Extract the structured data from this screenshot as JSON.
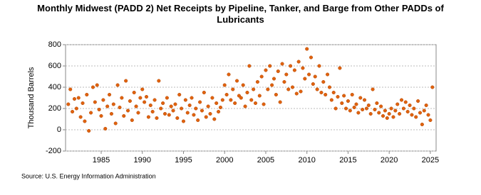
{
  "chart_data": {
    "type": "scatter",
    "title": "Monthly Midwest (PADD 2) Net Receipts by Pipeline, Tanker, and Barge from Other PADDs of Lubricants",
    "y_label": "Thousand Barrels",
    "source": "Source: U.S. Energy Information Administration",
    "color": "#e0620f",
    "grid": true,
    "xlim": [
      1980.67,
      2025.7
    ],
    "ylim": [
      -200,
      800
    ],
    "xticks": [
      1985,
      1990,
      1995,
      2000,
      2005,
      2010,
      2015,
      2020,
      2025
    ],
    "yticks": [
      -200,
      0,
      200,
      400,
      600,
      800
    ],
    "series": [
      {
        "name": "Net Receipts",
        "x": [
          1981,
          1981.25,
          1981.5,
          1981.75,
          1982,
          1982.25,
          1982.5,
          1982.75,
          1983,
          1983.25,
          1983.5,
          1983.75,
          1984,
          1984.25,
          1984.5,
          1984.75,
          1985,
          1985.25,
          1985.5,
          1985.75,
          1986,
          1986.25,
          1986.5,
          1986.75,
          1987,
          1987.25,
          1987.5,
          1987.75,
          1988,
          1988.25,
          1988.5,
          1988.75,
          1989,
          1989.25,
          1989.5,
          1989.75,
          1990,
          1990.25,
          1990.5,
          1990.75,
          1991,
          1991.25,
          1991.5,
          1991.75,
          1992,
          1992.25,
          1992.5,
          1992.75,
          1993,
          1993.25,
          1993.5,
          1993.75,
          1994,
          1994.25,
          1994.5,
          1994.75,
          1995,
          1995.25,
          1995.5,
          1995.75,
          1996,
          1996.25,
          1996.5,
          1996.75,
          1997,
          1997.25,
          1997.5,
          1997.75,
          1998,
          1998.25,
          1998.5,
          1998.75,
          1999,
          1999.25,
          1999.5,
          1999.75,
          2000,
          2000.25,
          2000.5,
          2000.75,
          2001,
          2001.25,
          2001.5,
          2001.75,
          2002,
          2002.25,
          2002.5,
          2002.75,
          2003,
          2003.25,
          2003.5,
          2003.75,
          2004,
          2004.25,
          2004.5,
          2004.75,
          2005,
          2005.25,
          2005.5,
          2005.75,
          2006,
          2006.25,
          2006.5,
          2006.75,
          2007,
          2007.25,
          2007.5,
          2007.75,
          2008,
          2008.25,
          2008.5,
          2008.75,
          2009,
          2009.25,
          2009.5,
          2009.75,
          2010,
          2010.25,
          2010.5,
          2010.75,
          2011,
          2011.25,
          2011.5,
          2011.75,
          2012,
          2012.25,
          2012.5,
          2012.75,
          2013,
          2013.25,
          2013.5,
          2013.75,
          2014,
          2014.25,
          2014.5,
          2014.75,
          2015,
          2015.25,
          2015.5,
          2015.75,
          2016,
          2016.25,
          2016.5,
          2016.75,
          2017,
          2017.25,
          2017.5,
          2017.75,
          2018,
          2018.25,
          2018.5,
          2018.75,
          2019,
          2019.25,
          2019.5,
          2019.75,
          2020,
          2020.25,
          2020.5,
          2020.75,
          2021,
          2021.25,
          2021.5,
          2021.75,
          2022,
          2022.25,
          2022.5,
          2022.75,
          2023,
          2023.25,
          2023.5,
          2023.75,
          2024,
          2024.25,
          2024.5,
          2024.75,
          2025,
          2025.25
        ],
        "values": [
          240,
          380,
          170,
          290,
          200,
          300,
          120,
          250,
          80,
          330,
          -10,
          160,
          400,
          260,
          420,
          190,
          130,
          280,
          10,
          220,
          330,
          150,
          240,
          60,
          420,
          210,
          300,
          130,
          460,
          180,
          270,
          90,
          350,
          220,
          160,
          300,
          380,
          260,
          310,
          120,
          230,
          170,
          280,
          110,
          460,
          200,
          250,
          150,
          300,
          140,
          220,
          180,
          240,
          110,
          330,
          200,
          80,
          280,
          160,
          230,
          300,
          140,
          200,
          90,
          260,
          180,
          350,
          120,
          220,
          150,
          300,
          100,
          250,
          170,
          210,
          280,
          420,
          330,
          520,
          280,
          380,
          250,
          460,
          320,
          300,
          420,
          220,
          350,
          600,
          280,
          380,
          250,
          450,
          320,
          500,
          240,
          560,
          380,
          600,
          420,
          480,
          330,
          550,
          260,
          620,
          450,
          520,
          380,
          600,
          400,
          560,
          340,
          640,
          360,
          580,
          480,
          760,
          520,
          680,
          430,
          500,
          380,
          600,
          350,
          450,
          330,
          520,
          400,
          280,
          350,
          200,
          310,
          580,
          250,
          320,
          200,
          270,
          180,
          330,
          210,
          240,
          160,
          300,
          190,
          280,
          200,
          230,
          150,
          380,
          190,
          250,
          160,
          220,
          130,
          180,
          110,
          150,
          200,
          120,
          180,
          240,
          150,
          280,
          200,
          260,
          170,
          230,
          140,
          200,
          120,
          270,
          160,
          50,
          180,
          230,
          140,
          90,
          400
        ]
      }
    ]
  }
}
